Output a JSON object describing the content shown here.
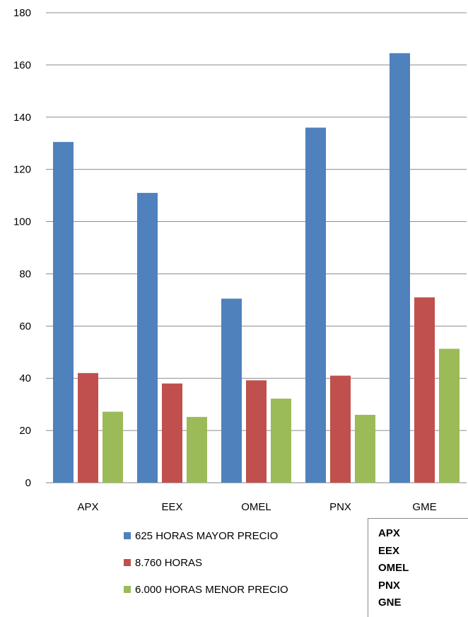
{
  "chart_data": {
    "type": "bar",
    "categories": [
      "APX",
      "EEX",
      "OMEL",
      "PNX",
      "GME"
    ],
    "series": [
      {
        "name": "625 HORAS MAYOR PRECIO",
        "color": "#4F81BD",
        "values": [
          130.5,
          111,
          70.5,
          136,
          164.5
        ]
      },
      {
        "name": "8.760 HORAS",
        "color": "#C0504D",
        "values": [
          42,
          38,
          39.2,
          41,
          71
        ]
      },
      {
        "name": "6.000 HORAS MENOR PRECIO",
        "color": "#9BBB59",
        "values": [
          27.2,
          25.2,
          32.2,
          26,
          51.3
        ]
      }
    ],
    "yticks": [
      "0",
      "20",
      "40",
      "60",
      "80",
      "100",
      "120",
      "140",
      "160",
      "180"
    ],
    "ylim": [
      0,
      180
    ],
    "grid": true,
    "legend_position": "bottom"
  },
  "side_box": {
    "items": [
      "APX",
      "EEX",
      "OMEL",
      "PNX",
      "GNE"
    ]
  }
}
